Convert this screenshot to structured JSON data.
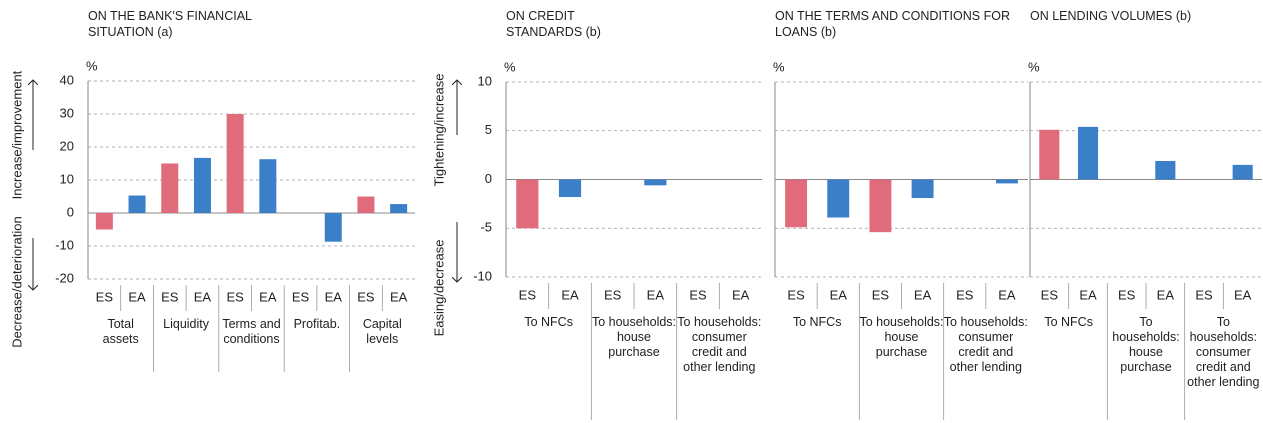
{
  "chart_data": [
    {
      "type": "bar",
      "title": "ON THE BANK'S FINANCIAL SITUATION (a)",
      "y_unit": "%",
      "axis_annotations": {
        "up": "Increase/improvement",
        "down": "Decrease/deterioration"
      },
      "categories": [
        "Total assets",
        "Liquidity",
        "Terms and conditions",
        "Profitab.",
        "Capital levels"
      ],
      "series": [
        {
          "name": "ES",
          "color": "#e06b7b",
          "values": [
            -5,
            15,
            30,
            0,
            5
          ]
        },
        {
          "name": "EA",
          "color": "#3b7fc8",
          "values": [
            5.3,
            16.7,
            16.3,
            -8.7,
            2.7
          ]
        }
      ],
      "ylim": [
        -20,
        40
      ],
      "yticks": [
        -20,
        -10,
        0,
        10,
        20,
        30,
        40
      ],
      "show_tick_labels": true,
      "grid": true
    },
    {
      "type": "bar",
      "title": "ON CREDIT STANDARDS (b)",
      "y_unit": "%",
      "axis_annotations": {
        "up": "Tightening/increase",
        "down": "Easing/decrease"
      },
      "categories": [
        "To NFCs",
        "To households: house purchase",
        "To households: consumer credit and other lending"
      ],
      "series": [
        {
          "name": "ES",
          "color": "#e06b7b",
          "values": [
            -5,
            0,
            0
          ]
        },
        {
          "name": "EA",
          "color": "#3b7fc8",
          "values": [
            -1.8,
            -0.6,
            0
          ]
        }
      ],
      "ylim": [
        -10,
        10
      ],
      "yticks": [
        -10,
        -5,
        0,
        5,
        10
      ],
      "show_tick_labels": true,
      "grid": true
    },
    {
      "type": "bar",
      "title": "ON THE TERMS AND CONDITIONS FOR LOANS (b)",
      "y_unit": "%",
      "categories": [
        "To NFCs",
        "To households: house purchase",
        "To households: consumer credit and other lending"
      ],
      "series": [
        {
          "name": "ES",
          "color": "#e06b7b",
          "values": [
            -4.9,
            -5.4,
            0
          ]
        },
        {
          "name": "EA",
          "color": "#3b7fc8",
          "values": [
            -3.9,
            -1.9,
            -0.4
          ]
        }
      ],
      "ylim": [
        -10,
        10
      ],
      "yticks": [
        -10,
        -5,
        0,
        5,
        10
      ],
      "show_tick_labels": false,
      "grid": true
    },
    {
      "type": "bar",
      "title": "ON LENDING VOLUMES (b)",
      "y_unit": "%",
      "categories": [
        "To NFCs",
        "To households: house purchase",
        "To households: consumer credit and other lending"
      ],
      "series": [
        {
          "name": "ES",
          "color": "#e06b7b",
          "values": [
            5.1,
            0,
            0
          ]
        },
        {
          "name": "EA",
          "color": "#3b7fc8",
          "values": [
            5.4,
            1.9,
            1.5
          ]
        }
      ],
      "ylim": [
        -10,
        10
      ],
      "yticks": [
        -10,
        -5,
        0,
        5,
        10
      ],
      "show_tick_labels": false,
      "grid": true
    }
  ]
}
